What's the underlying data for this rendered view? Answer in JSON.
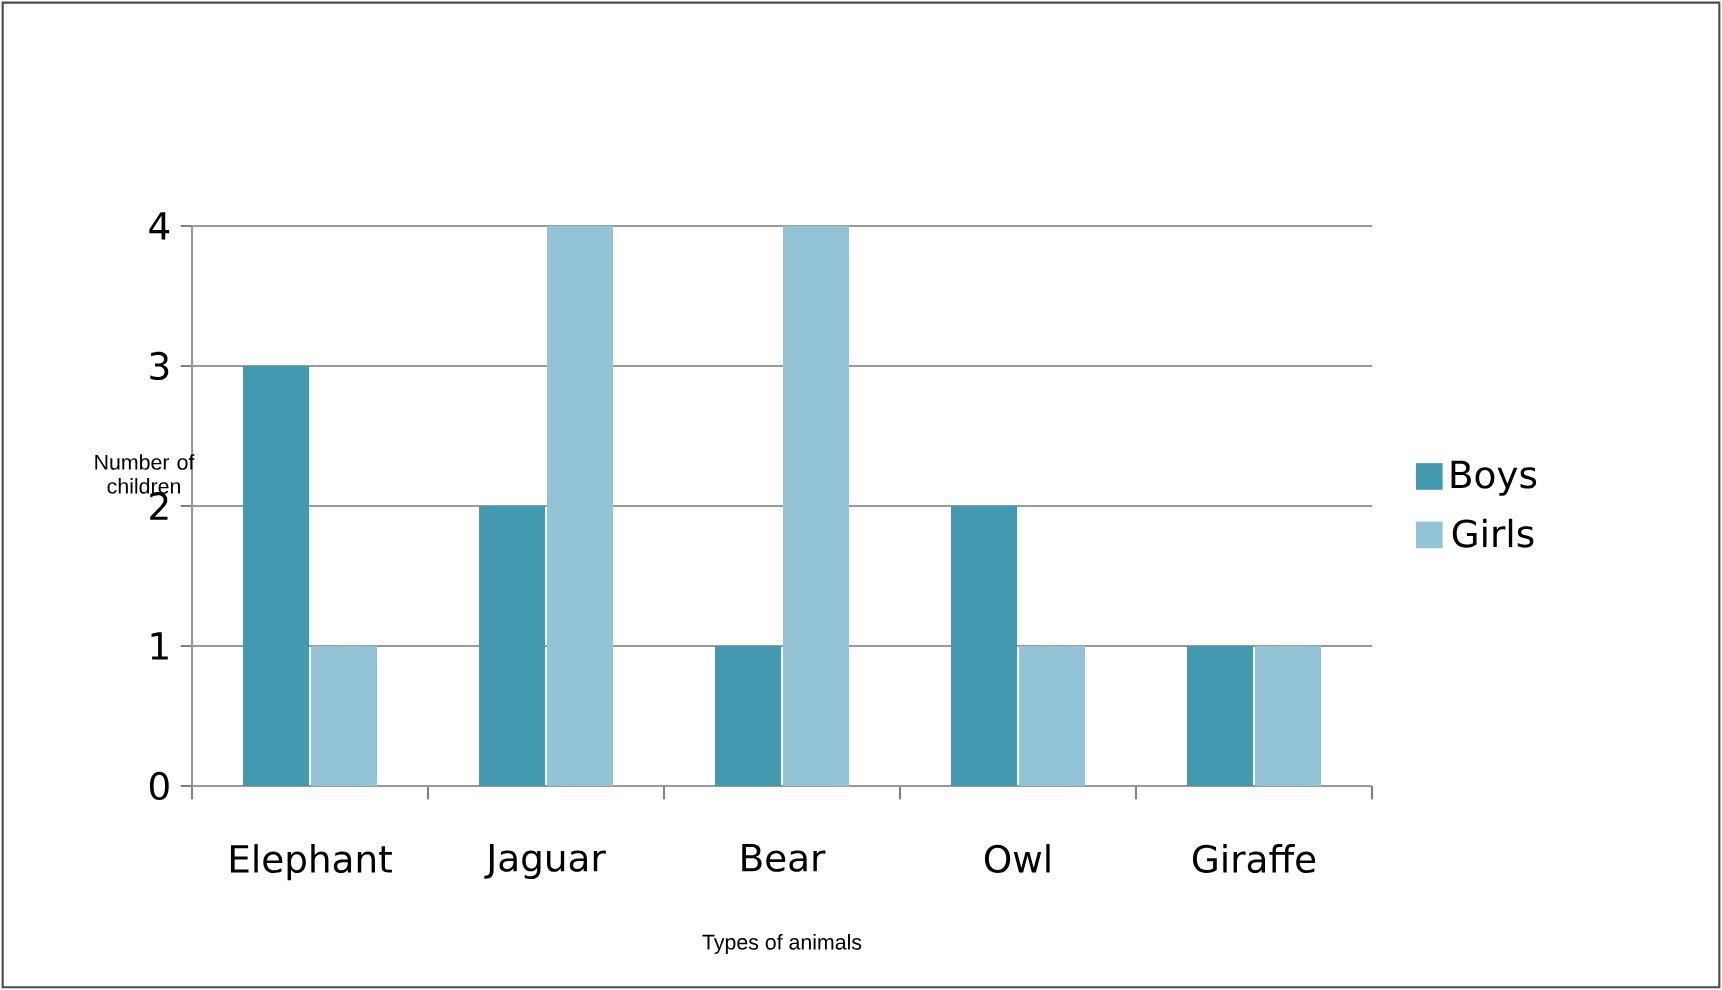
{
  "chart_data": {
    "type": "bar",
    "xlabel": "Types of animals",
    "ylabel": "Number of children",
    "categories": [
      "Elephant",
      "Jaguar",
      "Bear",
      "Owl",
      "Giraffe"
    ],
    "series": [
      {
        "name": "Boys",
        "color": "#4299b0",
        "values": [
          3,
          2,
          1,
          2,
          1
        ]
      },
      {
        "name": "Girls",
        "color": "#93c4d6",
        "values": [
          1,
          4,
          4,
          1,
          1
        ]
      }
    ],
    "ylim": [
      0,
      4
    ],
    "yticks": [
      0,
      1,
      2,
      3,
      4
    ],
    "grid": "y",
    "legend": "right"
  }
}
